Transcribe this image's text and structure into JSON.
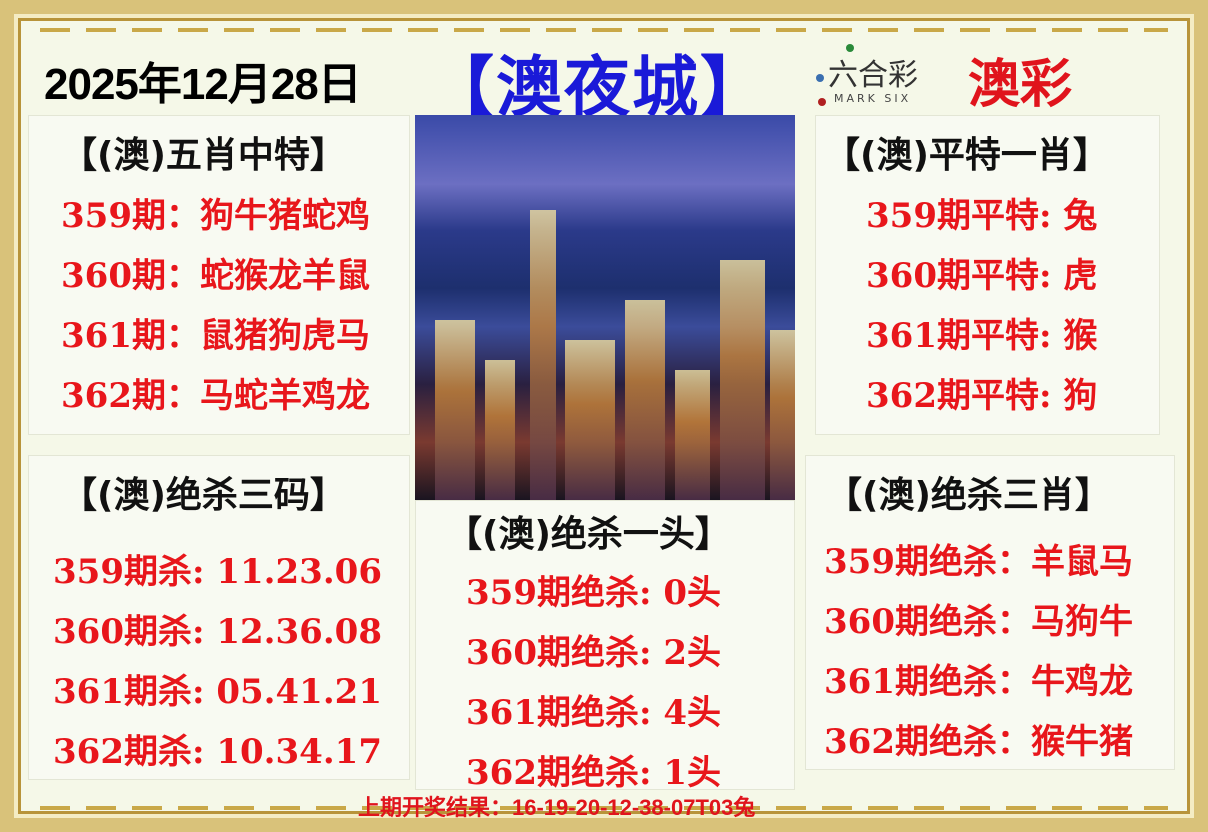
{
  "header": {
    "date": "2025年12月28日",
    "title": "【澳夜城】",
    "logo_cn": "六合彩",
    "logo_en": "MARK SIX",
    "brand": "澳彩"
  },
  "panels": {
    "five_zodiac": {
      "title": "【(澳)五肖中特】",
      "rows": [
        "359期：狗牛猪蛇鸡",
        "360期：蛇猴龙羊鼠",
        "361期：鼠猪狗虎马",
        "362期：马蛇羊鸡龙"
      ]
    },
    "flat_special": {
      "title": "【(澳)平特一肖】",
      "rows": [
        "359期平特:  兔",
        "360期平特:  虎",
        "361期平特:  猴",
        "362期平特:  狗"
      ]
    },
    "kill_three_codes": {
      "title": "【(澳)绝杀三码】",
      "rows": [
        "359期杀: 11.23.06",
        "360期杀: 12.36.08",
        "361期杀: 05.41.21",
        "362期杀: 10.34.17"
      ]
    },
    "kill_one_head": {
      "title": "【(澳)绝杀一头】",
      "rows": [
        "359期绝杀:  0头",
        "360期绝杀:  2头",
        "361期绝杀:  4头",
        "362期绝杀:  1头"
      ]
    },
    "kill_three_zodiac": {
      "title": "【(澳)绝杀三肖】",
      "rows": [
        "359期绝杀：羊鼠马",
        "360期绝杀：马狗牛",
        "361期绝杀：牛鸡龙",
        "362期绝杀：猴牛猪"
      ]
    }
  },
  "footer": {
    "last_result": "上期开奖结果：16-19-20-12-38-07T03兔"
  },
  "colors": {
    "red": "#e8161b",
    "title_blue": "#1a1ad8",
    "gold": "#c9a848"
  }
}
